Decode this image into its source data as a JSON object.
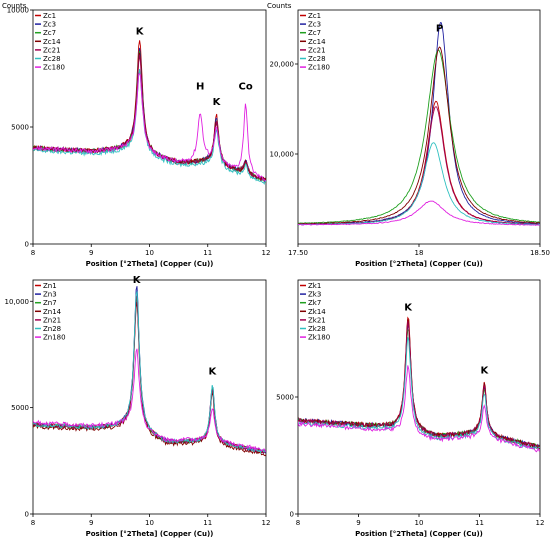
{
  "chart_data": [
    {
      "type": "line",
      "ylabel": "Counts",
      "xlabel": "Position [°2Theta] (Copper (Cu))",
      "xlim": [
        8,
        12
      ],
      "ylim": [
        0,
        10000
      ],
      "xticks": [
        "8",
        "9",
        "10",
        "11",
        "12"
      ],
      "yticks": [
        "0",
        "5000",
        "10000"
      ],
      "legend_position": "top-left",
      "series": [
        {
          "name": "Zc1",
          "color": "#c00000",
          "scale": 1.0,
          "base": 0
        },
        {
          "name": "Zc3",
          "color": "#2020a0",
          "scale": 0.93,
          "base": 0
        },
        {
          "name": "Zc7",
          "color": "#20a020",
          "scale": 0.9,
          "base": 0
        },
        {
          "name": "Zc14",
          "color": "#800000",
          "scale": 0.88,
          "base": 0
        },
        {
          "name": "Zc21",
          "color": "#a00050",
          "scale": 0.86,
          "base": 0
        },
        {
          "name": "Zc28",
          "color": "#30c0c0",
          "scale": 0.75,
          "base": -100
        },
        {
          "name": "Zc180",
          "color": "#e020e0",
          "scale": 0.72,
          "base": 0
        }
      ],
      "peaks": [
        {
          "x": 9.83,
          "h": 4800,
          "w": 0.06
        },
        {
          "x": 11.15,
          "h": 2100,
          "w": 0.05
        },
        {
          "x": 11.65,
          "h": 600,
          "w": 0.04
        }
      ],
      "special_peaks": [
        {
          "series": "Zc180",
          "x": 10.87,
          "h": 2100,
          "w": 0.05
        },
        {
          "series": "Zc180",
          "x": 11.65,
          "h": 2600,
          "w": 0.04
        }
      ],
      "baseline": [
        [
          8,
          4100
        ],
        [
          9,
          3950
        ],
        [
          9.6,
          4050
        ],
        [
          10.5,
          3450
        ],
        [
          11,
          3500
        ],
        [
          12,
          2700
        ]
      ],
      "annotations": [
        {
          "text": "K",
          "x": 9.83,
          "y": 8950
        },
        {
          "text": "H",
          "x": 10.87,
          "y": 6600
        },
        {
          "text": "K",
          "x": 11.15,
          "y": 5950
        },
        {
          "text": "Co",
          "x": 11.65,
          "y": 6600
        }
      ]
    },
    {
      "type": "line",
      "ylabel": "Counts",
      "xlabel": "Position [°2Theta] (Copper (Cu))",
      "xlim": [
        17.5,
        18.5
      ],
      "ylim": [
        0,
        26000
      ],
      "xticks": [
        "17.50",
        "18",
        "18.50"
      ],
      "xtick_values": [
        17.5,
        18,
        18.5
      ],
      "yticks": [
        "10,000",
        "20,000"
      ],
      "ytick_values": [
        10000,
        20000
      ],
      "legend_position": "top-left",
      "series": [
        {
          "name": "Zc1",
          "color": "#c00000",
          "peak": 13800,
          "center": 18.07,
          "w": 0.045
        },
        {
          "name": "Zc3",
          "color": "#2020a0",
          "peak": 22600,
          "center": 18.09,
          "w": 0.04
        },
        {
          "name": "Zc7",
          "color": "#20a020",
          "peak": 19500,
          "center": 18.08,
          "w": 0.06
        },
        {
          "name": "Zc14",
          "color": "#800000",
          "peak": 19800,
          "center": 18.085,
          "w": 0.05
        },
        {
          "name": "Zc21",
          "color": "#a00050",
          "peak": 13200,
          "center": 18.07,
          "w": 0.045
        },
        {
          "name": "Zc28",
          "color": "#30c0c0",
          "peak": 9200,
          "center": 18.06,
          "w": 0.05
        },
        {
          "name": "Zc180",
          "color": "#e020e0",
          "peak": 2700,
          "center": 18.05,
          "w": 0.07
        }
      ],
      "baseline": 2100,
      "annotations": [
        {
          "text": "P",
          "x": 18.085,
          "y": 23600
        }
      ]
    },
    {
      "type": "line",
      "ylabel": "",
      "xlabel": "Position [°2Theta] (Copper (Cu))",
      "xlim": [
        8,
        12
      ],
      "ylim": [
        0,
        11000
      ],
      "xticks": [
        "8",
        "9",
        "10",
        "11",
        "12"
      ],
      "yticks": [
        "0",
        "5000",
        "10,000"
      ],
      "legend_position": "top-left",
      "series": [
        {
          "name": "Zn1",
          "color": "#c00000",
          "scale": 0.95,
          "base": 0
        },
        {
          "name": "Zn3",
          "color": "#2020a0",
          "scale": 1.0,
          "base": 0
        },
        {
          "name": "Zn7",
          "color": "#20a020",
          "scale": 0.93,
          "base": 0
        },
        {
          "name": "Zn14",
          "color": "#800000",
          "scale": 0.9,
          "base": -100
        },
        {
          "name": "Zn21",
          "color": "#a00050",
          "scale": 0.94,
          "base": 0
        },
        {
          "name": "Zn28",
          "color": "#30c0c0",
          "scale": 0.98,
          "base": 0
        },
        {
          "name": "Zn180",
          "color": "#e020e0",
          "scale": 0.55,
          "base": 100
        }
      ],
      "peaks": [
        {
          "x": 9.78,
          "h": 6800,
          "w": 0.055
        },
        {
          "x": 11.08,
          "h": 2700,
          "w": 0.045
        }
      ],
      "special_peaks": [],
      "baseline": [
        [
          8,
          4200
        ],
        [
          9,
          4050
        ],
        [
          9.6,
          4100
        ],
        [
          10.3,
          3350
        ],
        [
          11,
          3400
        ],
        [
          12,
          2900
        ]
      ],
      "annotations": [
        {
          "text": "K",
          "x": 9.78,
          "y": 10850
        },
        {
          "text": "K",
          "x": 11.08,
          "y": 6550
        }
      ]
    },
    {
      "type": "line",
      "ylabel": "",
      "xlabel": "Position [°2Theta] (Copper (Cu))",
      "xlim": [
        8,
        12
      ],
      "ylim": [
        0,
        10000
      ],
      "xticks": [
        "8",
        "9",
        "10",
        "11",
        "12"
      ],
      "yticks": [
        "0",
        "5000"
      ],
      "ytick_values": [
        0,
        5000
      ],
      "legend_position": "top-left",
      "series": [
        {
          "name": "Zk1",
          "color": "#c00000",
          "scale": 1.0,
          "base": 0
        },
        {
          "name": "Zk3",
          "color": "#2020a0",
          "scale": 0.92,
          "base": 0
        },
        {
          "name": "Zk7",
          "color": "#20a020",
          "scale": 0.9,
          "base": 0
        },
        {
          "name": "Zk14",
          "color": "#800000",
          "scale": 0.98,
          "base": 0
        },
        {
          "name": "Zk21",
          "color": "#a00050",
          "scale": 0.95,
          "base": 0
        },
        {
          "name": "Zk28",
          "color": "#30c0c0",
          "scale": 0.85,
          "base": -100
        },
        {
          "name": "Zk180",
          "color": "#e020e0",
          "scale": 0.6,
          "base": -150
        }
      ],
      "peaks": [
        {
          "x": 9.82,
          "h": 4900,
          "w": 0.055
        },
        {
          "x": 11.08,
          "h": 2200,
          "w": 0.045
        }
      ],
      "special_peaks": [],
      "baseline": [
        [
          8,
          4000
        ],
        [
          8.8,
          3850
        ],
        [
          9.5,
          3700
        ],
        [
          10.3,
          3300
        ],
        [
          11,
          3450
        ],
        [
          12,
          2850
        ]
      ],
      "annotations": [
        {
          "text": "K",
          "x": 9.82,
          "y": 8700
        },
        {
          "text": "K",
          "x": 11.08,
          "y": 6000
        }
      ]
    }
  ]
}
